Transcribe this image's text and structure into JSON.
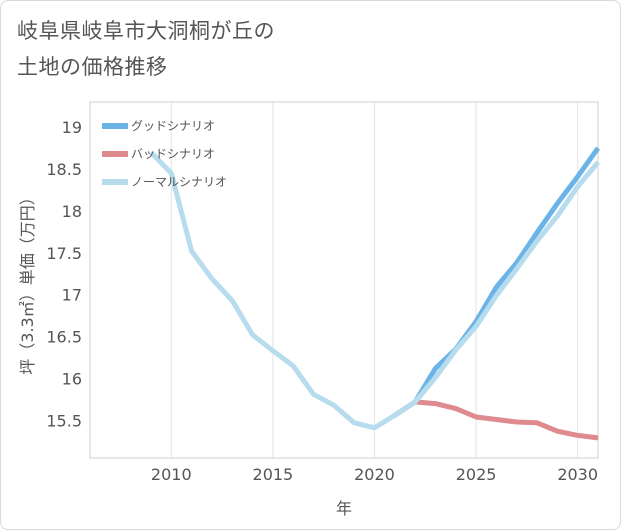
{
  "title": "岐阜県岐阜市大洞桐が丘の\n土地の価格推移",
  "chart_data": {
    "type": "line",
    "xlabel": "年",
    "ylabel": "坪（3.3㎡）単価（万円）",
    "xlim": [
      2006,
      2031
    ],
    "ylim": [
      15.05,
      19.3
    ],
    "xticks": [
      2010,
      2015,
      2020,
      2025,
      2030
    ],
    "yticks": [
      15.5,
      16,
      16.5,
      17,
      17.5,
      18,
      18.5,
      19
    ],
    "ytick_labels": [
      "15.5",
      "16",
      "16.5",
      "17",
      "17.5",
      "18",
      "18.5",
      "19"
    ],
    "grid": "vertical",
    "legend_position": "top-left",
    "series": [
      {
        "name": "グッドシナリオ",
        "color": "#6cb4e8",
        "x": [
          2021,
          2022,
          2023,
          2024,
          2025,
          2026,
          2027,
          2028,
          2029,
          2030,
          2031
        ],
        "y": [
          15.56,
          15.72,
          16.12,
          16.35,
          16.68,
          17.09,
          17.38,
          17.74,
          18.09,
          18.41,
          18.75
        ]
      },
      {
        "name": "バッドシナリオ",
        "color": "#de8a8f",
        "x": [
          2021,
          2022,
          2023,
          2024,
          2025,
          2026,
          2027,
          2028,
          2029,
          2030,
          2031
        ],
        "y": [
          15.56,
          15.72,
          15.7,
          15.64,
          15.54,
          15.51,
          15.48,
          15.47,
          15.37,
          15.32,
          15.29
        ]
      },
      {
        "name": "ノーマルシナリオ",
        "color": "#b6dcee",
        "x": [
          2009,
          2010,
          2011,
          2012,
          2013,
          2014,
          2015,
          2016,
          2017,
          2018,
          2019,
          2020,
          2021,
          2022,
          2023,
          2024,
          2025,
          2026,
          2027,
          2028,
          2029,
          2030,
          2031
        ],
        "y": [
          18.7,
          18.45,
          17.52,
          17.19,
          16.93,
          16.52,
          16.33,
          16.15,
          15.81,
          15.68,
          15.47,
          15.41,
          15.56,
          15.72,
          16.01,
          16.34,
          16.62,
          16.99,
          17.31,
          17.64,
          17.94,
          18.29,
          18.58
        ]
      }
    ]
  }
}
